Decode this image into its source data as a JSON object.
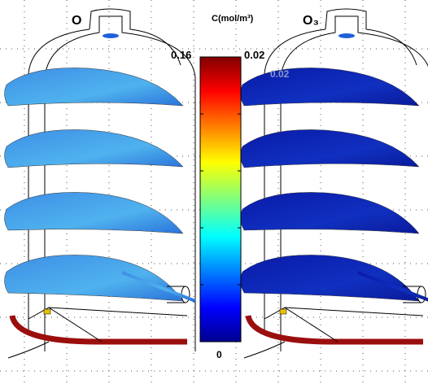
{
  "panels": [
    {
      "label": "O"
    },
    {
      "label": "O₃"
    }
  ],
  "colorbar": {
    "title": "C(mol/m³)",
    "left_max": "0.16",
    "right_max": "0.02",
    "inner_label": "0.02",
    "min": "0"
  }
}
